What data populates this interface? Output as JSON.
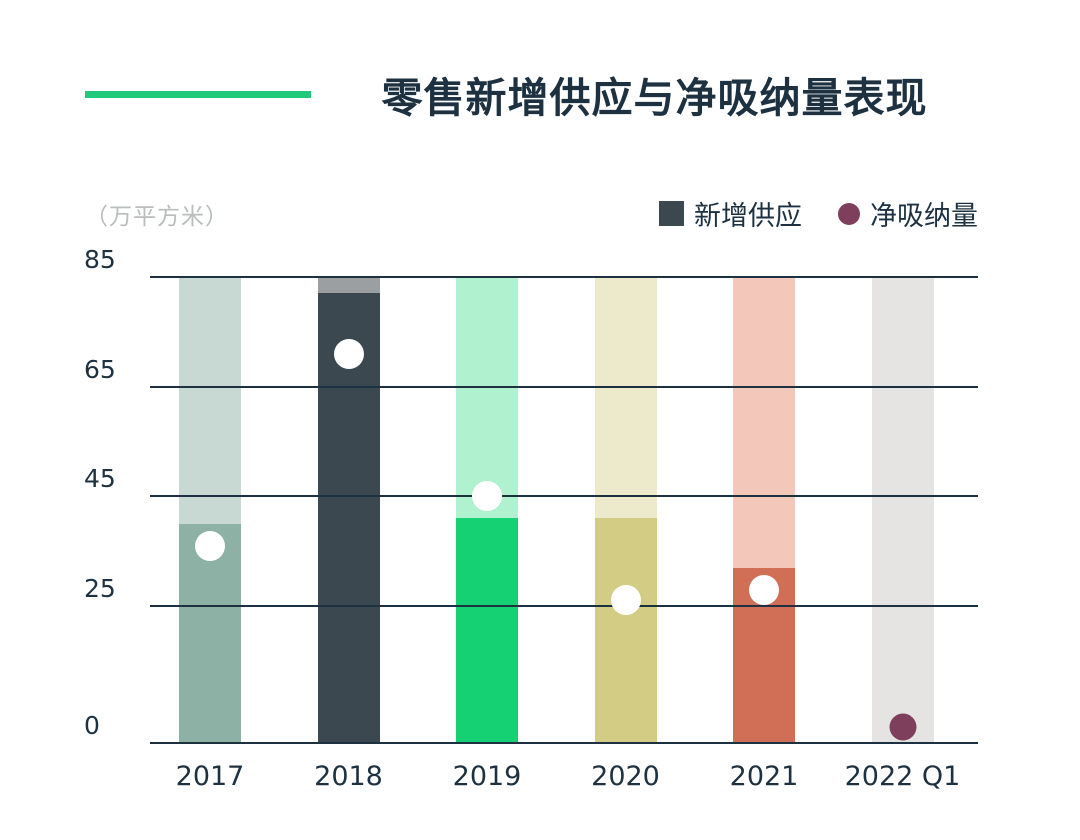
{
  "title": "零售新增供应与净吸纳量表现",
  "unit_label": "（万平方米）",
  "legend": {
    "supply": {
      "label": "新增供应",
      "color": "#3c4850"
    },
    "absorption": {
      "label": "净吸纳量",
      "color": "#7e3f5c"
    }
  },
  "colors": {
    "accent_line": "#21c97d",
    "text": "#1d3140",
    "gridline": "#1d3140",
    "unit_label_gray": "#b9bdbd"
  },
  "chart_data": {
    "type": "bar",
    "title": "零售新增供应与净吸纳量表现",
    "ylabel": "万平方米",
    "ylim": [
      0,
      85
    ],
    "yticks": [
      85,
      65,
      45,
      25,
      0
    ],
    "grid": true,
    "legend_position": "top-right",
    "categories": [
      "2017",
      "2018",
      "2019",
      "2020",
      "2021",
      "2022 Q1"
    ],
    "series": [
      {
        "name": "新增供应",
        "type": "bar",
        "values": [
          40,
          82,
          41,
          41,
          32,
          0
        ]
      },
      {
        "name": "净吸纳量",
        "type": "point",
        "values": [
          36,
          71,
          45,
          26,
          28,
          3
        ]
      }
    ],
    "bar_background_values": [
      85,
      85,
      85,
      85,
      85,
      85
    ],
    "bar_colors": [
      "#8eb1a6",
      "#3c4850",
      "#15d173",
      "#d3cc85",
      "#d06f56",
      "#e6e4e2"
    ],
    "bar_background_colors": [
      "#c8d8d2",
      "#9b9fa2",
      "#b0f1d0",
      "#edeacc",
      "#f3c8bb",
      "#e6e4e2"
    ],
    "dot_colors": [
      "#ffffff",
      "#ffffff",
      "#ffffff",
      "#ffffff",
      "#ffffff",
      "#7e3f5c"
    ],
    "dot_sizes": [
      30,
      30,
      30,
      30,
      30,
      27
    ]
  }
}
